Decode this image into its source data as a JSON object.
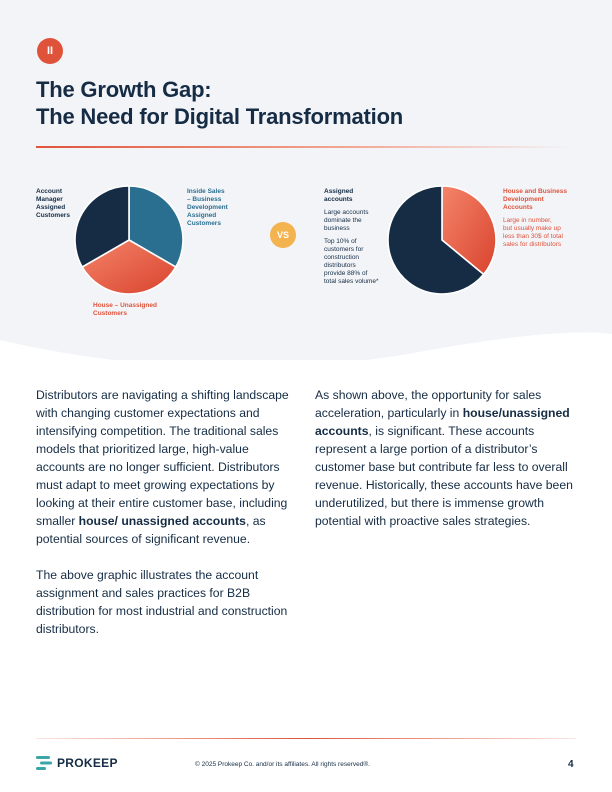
{
  "section_badge": "II",
  "title": {
    "line1": "The Growth Gap:",
    "line2": "The Need for Digital Transformation"
  },
  "colors": {
    "navy": "#152c44",
    "teal": "#2b6f90",
    "coral": "#e0533b",
    "gold": "#f3b44f"
  },
  "chart_data": [
    {
      "type": "pie",
      "slices": [
        {
          "label": "Inside Sales – Business Development Assigned Customers",
          "value": 33.3,
          "color": "#2b6f90"
        },
        {
          "label": "House – Unassigned Customers",
          "value": 33.3,
          "color": "#e0533b"
        },
        {
          "label": "Account Manager Assigned Customers",
          "value": 33.3,
          "color": "#152c44"
        }
      ],
      "labels": {
        "account_manager": [
          "Account",
          "Manager",
          "Assigned",
          "Customers"
        ],
        "inside_sales": [
          "Inside Sales",
          "– Business",
          "Development",
          "Assigned",
          "Customers"
        ],
        "house": [
          "House – Unassigned",
          "Customers"
        ]
      }
    },
    {
      "type": "pie",
      "slices": [
        {
          "label": "House and Business Development Accounts",
          "value": 36,
          "color": "#e0533b"
        },
        {
          "label": "Assigned accounts",
          "value": 64,
          "color": "#152c44"
        }
      ],
      "labels": {
        "assigned_title": [
          "Assigned",
          "accounts"
        ],
        "assigned_desc1": [
          "Large accounts",
          "dominate the",
          "business"
        ],
        "assigned_desc2": [
          "Top 10% of",
          "customers for",
          "construction",
          "distributors",
          "provide 88% of",
          "total sales volume*"
        ],
        "house_title": [
          "House and Business",
          "Development",
          "Accounts"
        ],
        "house_desc": [
          "Large in number,",
          "but usually make up",
          "less than 30$ of total",
          "sales for distributors"
        ]
      }
    }
  ],
  "vs_label": "VS",
  "left_column": {
    "p1_part1": "Distributors are navigating a shifting landscape with changing customer expectations and intensifying competition. The traditional sales models that prioritized large, high-value accounts are no longer sufficient. Distributors must adapt to meet growing expectations by looking at their entire customer base, including smaller ",
    "p1_bold": "house/ unassigned accounts",
    "p1_part2": ", as potential sources of significant revenue.",
    "p2": "The above graphic illustrates the account assignment and sales practices for B2B distribution for most industrial and construction distributors."
  },
  "right_column": {
    "p1_part1": "As shown above, the opportunity for sales acceleration, particularly in ",
    "p1_bold": "house/unassigned accounts",
    "p1_part2": ", is significant. These accounts represent a large portion of a distributor’s customer base but contribute far less to overall revenue. Historically, these accounts have been underutilized, but there is immense growth potential with proactive sales strategies."
  },
  "footer": {
    "logo_text": "PROKEEP",
    "copyright": "© 2025 Prokeep Co. and/or its affiliates.  All rights reserved®.",
    "page_number": "4"
  }
}
